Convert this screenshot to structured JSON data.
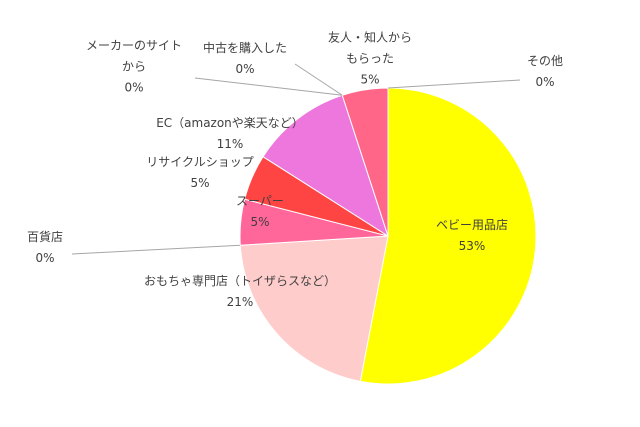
{
  "chart_data": {
    "type": "pie",
    "title": "",
    "start_angle_deg": 0,
    "direction": "clockwise",
    "slices": [
      {
        "label": "ベビー用品店",
        "label_lines": [
          "ベビー用品店"
        ],
        "value": 53,
        "value_label": "53%",
        "color": "#ffff00"
      },
      {
        "label": "おもちゃ専門店（トイザらスなど）",
        "label_lines": [
          "おもちゃ専門店（トイザらスなど）"
        ],
        "value": 21,
        "value_label": "21%",
        "color": "#ffcccc"
      },
      {
        "label": "百貨店",
        "label_lines": [
          "百貨店"
        ],
        "value": 0,
        "value_label": "0%",
        "color": "#ff99cc"
      },
      {
        "label": "スーパー",
        "label_lines": [
          "スーパー"
        ],
        "value": 5,
        "value_label": "5%",
        "color": "#ff6699"
      },
      {
        "label": "リサイクルショップ",
        "label_lines": [
          "リサイクルショップ"
        ],
        "value": 5,
        "value_label": "5%",
        "color": "#ff4444"
      },
      {
        "label": "EC（amazonや楽天など）",
        "label_lines": [
          "EC（amazonや楽天など）"
        ],
        "value": 11,
        "value_label": "11%",
        "color": "#ee77dd"
      },
      {
        "label": "メーカーのサイトから",
        "label_lines": [
          "メーカーのサイト",
          "から"
        ],
        "value": 0,
        "value_label": "0%",
        "color": "#cc66cc"
      },
      {
        "label": "中古を購入した",
        "label_lines": [
          "中古を購入した"
        ],
        "value": 0,
        "value_label": "0%",
        "color": "#aa55aa"
      },
      {
        "label": "友人・知人からもらった",
        "label_lines": [
          "友人・知人から",
          "もらった"
        ],
        "value": 5,
        "value_label": "5%",
        "color": "#ff6688"
      },
      {
        "label": "その他",
        "label_lines": [
          "その他"
        ],
        "value": 0,
        "value_label": "0%",
        "color": "#999999"
      }
    ]
  }
}
